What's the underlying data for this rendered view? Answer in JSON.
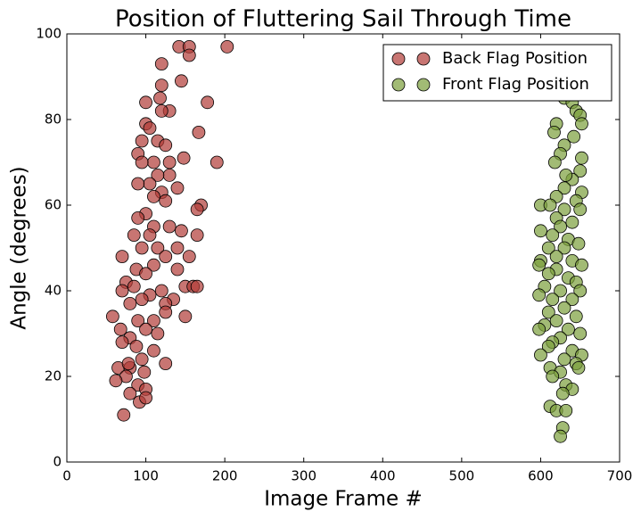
{
  "chart_data": {
    "type": "scatter",
    "title": "Position of Fluttering Sail Through Time",
    "x_label": "Image Frame #",
    "y_label": "Angle (degrees)",
    "xlim": [
      0,
      700
    ],
    "xticks": [
      0,
      100,
      200,
      300,
      400,
      500,
      600,
      700
    ],
    "ylim": [
      0,
      100
    ],
    "yticks": [
      0,
      20,
      40,
      60,
      80,
      100
    ],
    "legend": "upper right",
    "series": [
      {
        "name": "Back Flag Position",
        "color": "#b03a36",
        "x": [
          203,
          142,
          155,
          155,
          120,
          145,
          178,
          120,
          100,
          118,
          130,
          120,
          100,
          105,
          167,
          95,
          115,
          190,
          125,
          148,
          90,
          110,
          95,
          130,
          130,
          115,
          105,
          90,
          140,
          120,
          125,
          110,
          170,
          165,
          100,
          90,
          130,
          110,
          145,
          105,
          85,
          165,
          140,
          115,
          95,
          125,
          155,
          70,
          110,
          88,
          140,
          100,
          75,
          150,
          160,
          165,
          85,
          120,
          105,
          70,
          95,
          135,
          125,
          80,
          150,
          58,
          110,
          125,
          90,
          100,
          68,
          80,
          115,
          88,
          70,
          110,
          95,
          125,
          65,
          80,
          98,
          75,
          62,
          90,
          80,
          100,
          92,
          100,
          72,
          78
        ],
        "y": [
          97,
          97,
          97,
          95,
          93,
          89,
          84,
          88,
          84,
          85,
          82,
          82,
          79,
          78,
          77,
          75,
          75,
          70,
          74,
          71,
          72,
          70,
          70,
          70,
          67,
          67,
          65,
          65,
          64,
          63,
          61,
          62,
          60,
          59,
          58,
          57,
          55,
          55,
          54,
          53,
          53,
          53,
          50,
          50,
          50,
          48,
          48,
          48,
          46,
          45,
          45,
          44,
          42,
          41,
          41,
          41,
          41,
          40,
          39,
          40,
          38,
          38,
          37,
          37,
          34,
          34,
          33,
          35,
          33,
          31,
          31,
          29,
          30,
          27,
          28,
          26,
          24,
          23,
          22,
          22,
          21,
          20,
          19,
          18,
          16,
          17,
          14,
          15,
          11,
          23
        ]
      },
      {
        "name": "Front Flag Position",
        "color": "#7a9e3a",
        "x": [
          638,
          630,
          640,
          645,
          650,
          620,
          652,
          617,
          642,
          630,
          652,
          625,
          618,
          650,
          640,
          632,
          630,
          652,
          620,
          645,
          600,
          612,
          630,
          650,
          620,
          640,
          600,
          625,
          615,
          635,
          648,
          610,
          630,
          620,
          600,
          640,
          598,
          652,
          620,
          610,
          635,
          645,
          605,
          625,
          650,
          615,
          598,
          640,
          630,
          610,
          645,
          620,
          605,
          635,
          650,
          598,
          625,
          615,
          610,
          640,
          652,
          600,
          630,
          645,
          612,
          648,
          625,
          615,
          632,
          640,
          628,
          612,
          620,
          632,
          628,
          625
        ],
        "y": [
          86,
          85,
          84,
          82,
          81,
          79,
          79,
          77,
          76,
          74,
          71,
          72,
          70,
          68,
          66,
          67,
          64,
          63,
          62,
          61,
          60,
          60,
          59,
          59,
          57,
          56,
          54,
          55,
          53,
          52,
          51,
          50,
          50,
          48,
          47,
          47,
          46,
          46,
          45,
          44,
          43,
          42,
          41,
          40,
          40,
          38,
          39,
          38,
          36,
          35,
          34,
          33,
          32,
          31,
          30,
          31,
          29,
          28,
          27,
          26,
          25,
          25,
          24,
          23,
          22,
          22,
          21,
          20,
          18,
          17,
          16,
          13,
          12,
          12,
          8,
          6
        ]
      }
    ]
  }
}
